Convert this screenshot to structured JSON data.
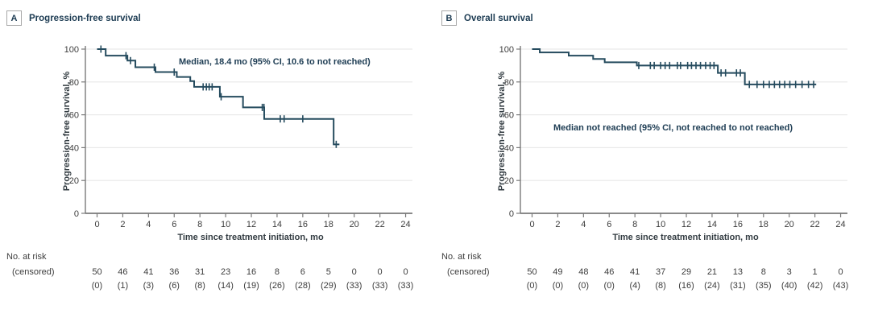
{
  "figure": {
    "panels": [
      {
        "letter": "A",
        "title": "Progression-free survival"
      },
      {
        "letter": "B",
        "title": "Overall survival"
      }
    ]
  },
  "colors": {
    "curve": "#254b5e",
    "axis": "#7a7a7a",
    "gridline": "#e9e9e9",
    "tick_text": "#3d3d3d",
    "title_text": "#1d3c53",
    "risk_text": "#3d3d3d"
  },
  "chart_data": [
    {
      "type": "line",
      "subtype": "kaplan-meier-step",
      "panel": "A",
      "title": "Progression-free survival",
      "annotation": "Median, 18.4 mo (95% CI, 10.6 to not reached)",
      "xlabel": "Time since treatment initiation, mo",
      "ylabel": "Progression-free survival, %",
      "xlim": [
        0,
        24
      ],
      "ylim": [
        0,
        100
      ],
      "x_ticks": [
        0,
        2,
        4,
        6,
        8,
        10,
        12,
        14,
        16,
        18,
        20,
        22,
        24
      ],
      "y_ticks": [
        0,
        20,
        40,
        60,
        80,
        100
      ],
      "grid": true,
      "steps": [
        {
          "t_start": 0,
          "t_end": 0.67,
          "survival_pct": 100,
          "censor_times": [
            0.3
          ]
        },
        {
          "t_start": 0.67,
          "t_end": 2.36,
          "survival_pct": 96,
          "censor_times": [
            2.25
          ]
        },
        {
          "t_start": 2.36,
          "t_end": 2.98,
          "survival_pct": 93,
          "censor_times": [
            2.6
          ]
        },
        {
          "t_start": 2.98,
          "t_end": 4.54,
          "survival_pct": 89,
          "censor_times": [
            4.45
          ]
        },
        {
          "t_start": 4.54,
          "t_end": 6.2,
          "survival_pct": 86,
          "censor_times": [
            6.0
          ]
        },
        {
          "t_start": 6.2,
          "t_end": 7.25,
          "survival_pct": 83,
          "censor_times": []
        },
        {
          "t_start": 7.25,
          "t_end": 7.55,
          "survival_pct": 80.5,
          "censor_times": []
        },
        {
          "t_start": 7.55,
          "t_end": 9.55,
          "survival_pct": 77,
          "censor_times": [
            8.25,
            8.5,
            8.72,
            8.95
          ]
        },
        {
          "t_start": 9.55,
          "t_end": 11.35,
          "survival_pct": 71,
          "censor_times": [
            9.65
          ]
        },
        {
          "t_start": 11.35,
          "t_end": 13.0,
          "survival_pct": 64.5,
          "censor_times": [
            12.85,
            12.98
          ]
        },
        {
          "t_start": 13.0,
          "t_end": 18.4,
          "survival_pct": 57.5,
          "censor_times": [
            14.25,
            14.55,
            16.0
          ]
        },
        {
          "t_start": 18.4,
          "t_end": 18.85,
          "survival_pct": 42,
          "censor_times": [
            18.6
          ]
        }
      ],
      "risk_table": {
        "row1_label": "No. at risk",
        "row2_label": "(censored)",
        "no_at_risk": [
          50,
          46,
          41,
          36,
          31,
          23,
          16,
          8,
          6,
          5,
          0,
          0,
          0
        ],
        "censored": [
          0,
          1,
          3,
          6,
          8,
          14,
          19,
          26,
          28,
          29,
          33,
          33,
          33
        ]
      }
    },
    {
      "type": "line",
      "subtype": "kaplan-meier-step",
      "panel": "B",
      "title": "Overall survival",
      "annotation": "Median not reached (95% CI, not reached to not reached)",
      "xlabel": "Time since treatment initiation, mo",
      "ylabel": "Progression-free survival, %",
      "xlim": [
        0,
        24
      ],
      "ylim": [
        0,
        100
      ],
      "x_ticks": [
        0,
        2,
        4,
        6,
        8,
        10,
        12,
        14,
        16,
        18,
        20,
        22,
        24
      ],
      "y_ticks": [
        0,
        20,
        40,
        60,
        80,
        100
      ],
      "grid": true,
      "steps": [
        {
          "t_start": 0,
          "t_end": 0.6,
          "survival_pct": 100,
          "censor_times": []
        },
        {
          "t_start": 0.6,
          "t_end": 2.85,
          "survival_pct": 98,
          "censor_times": []
        },
        {
          "t_start": 2.85,
          "t_end": 4.75,
          "survival_pct": 96,
          "censor_times": []
        },
        {
          "t_start": 4.75,
          "t_end": 5.65,
          "survival_pct": 94,
          "censor_times": []
        },
        {
          "t_start": 5.65,
          "t_end": 8.15,
          "survival_pct": 92,
          "censor_times": []
        },
        {
          "t_start": 8.15,
          "t_end": 14.45,
          "survival_pct": 90,
          "censor_times": [
            8.3,
            9.2,
            9.5,
            10.0,
            10.35,
            10.7,
            11.3,
            11.55,
            12.1,
            12.4,
            12.75,
            13.1,
            13.5,
            13.85,
            14.15
          ]
        },
        {
          "t_start": 14.45,
          "t_end": 16.55,
          "survival_pct": 85.5,
          "censor_times": [
            14.7,
            15.05,
            15.9,
            16.2
          ]
        },
        {
          "t_start": 16.55,
          "t_end": 22.1,
          "survival_pct": 78.5,
          "censor_times": [
            16.9,
            17.5,
            18.0,
            18.45,
            18.85,
            19.25,
            19.65,
            20.05,
            20.5,
            21.0,
            21.5,
            21.9
          ]
        }
      ],
      "risk_table": {
        "row1_label": "No. at risk",
        "row2_label": "(censored)",
        "no_at_risk": [
          50,
          49,
          48,
          46,
          41,
          37,
          29,
          21,
          13,
          8,
          3,
          1,
          0
        ],
        "censored": [
          0,
          0,
          0,
          0,
          4,
          8,
          16,
          24,
          31,
          35,
          40,
          42,
          43
        ]
      }
    }
  ]
}
